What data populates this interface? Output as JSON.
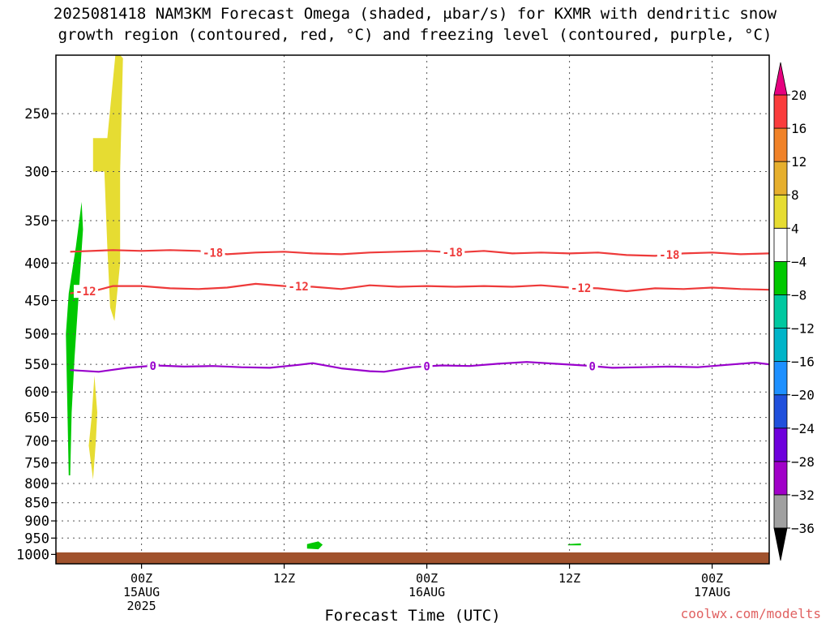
{
  "title_line1": "2025081418 NAM3KM Forecast Omega (shaded, μbar/s) for KXMR with dendritic snow",
  "title_line2": "growth region (contoured, red, °C) and freezing level (contoured, purple, °C)",
  "xlabel": "Forecast Time (UTC)",
  "watermark": "coolwx.com/modelts",
  "chart_data": {
    "type": "heatmap",
    "y_scale": "log-pressure",
    "ylim": [
      1030,
      208
    ],
    "xlim": [
      -6,
      44
    ],
    "grid": true,
    "y_ticks": [
      250,
      300,
      350,
      400,
      450,
      500,
      550,
      600,
      650,
      700,
      750,
      800,
      850,
      900,
      950,
      1000
    ],
    "x_ticks": [
      {
        "x": 0,
        "lines": [
          "00Z",
          "15AUG",
          "2025"
        ]
      },
      {
        "x": 10,
        "lines": [
          "12Z"
        ]
      },
      {
        "x": 20,
        "lines": [
          "00Z",
          "16AUG"
        ]
      },
      {
        "x": 30,
        "lines": [
          "12Z"
        ]
      },
      {
        "x": 40,
        "lines": [
          "00Z",
          "17AUG"
        ]
      }
    ],
    "colorbar": {
      "levels": [
        -36,
        -32,
        -28,
        -24,
        -20,
        -16,
        -12,
        -8,
        -4,
        4,
        8,
        12,
        16,
        20
      ],
      "colors": [
        "#000000",
        "#a0a0a0",
        "#a000c8",
        "#6e00dc",
        "#2050dc",
        "#1e90ff",
        "#00b4c8",
        "#00c8a0",
        "#00c800",
        "#ffffff",
        "#e6dc32",
        "#e6af2d",
        "#f08228",
        "#fa3c3c",
        "#e6007f"
      ]
    },
    "contours": [
      {
        "label": "-18",
        "color": "#ee3a3a",
        "points": [
          [
            -5,
            386
          ],
          [
            -2,
            384
          ],
          [
            0,
            385
          ],
          [
            2,
            384
          ],
          [
            4,
            385
          ],
          [
            6,
            389
          ],
          [
            8,
            387
          ],
          [
            10,
            386
          ],
          [
            12,
            388
          ],
          [
            14,
            389
          ],
          [
            16,
            387
          ],
          [
            18,
            386
          ],
          [
            20,
            385
          ],
          [
            22,
            387
          ],
          [
            24,
            385
          ],
          [
            26,
            388
          ],
          [
            28,
            387
          ],
          [
            30,
            388
          ],
          [
            32,
            387
          ],
          [
            34,
            390
          ],
          [
            36,
            391
          ],
          [
            38,
            388
          ],
          [
            40,
            387
          ],
          [
            42,
            389
          ],
          [
            44,
            388
          ]
        ],
        "label_x": [
          5,
          21.8,
          37
        ]
      },
      {
        "label": "-12",
        "color": "#ee3a3a",
        "points": [
          [
            -5,
            440
          ],
          [
            -3,
            435
          ],
          [
            -2,
            430
          ],
          [
            0,
            430
          ],
          [
            2,
            433
          ],
          [
            4,
            434
          ],
          [
            6,
            432
          ],
          [
            8,
            427
          ],
          [
            10,
            430
          ],
          [
            12,
            431
          ],
          [
            14,
            434
          ],
          [
            16,
            429
          ],
          [
            18,
            431
          ],
          [
            20,
            430
          ],
          [
            22,
            431
          ],
          [
            24,
            430
          ],
          [
            26,
            431
          ],
          [
            28,
            429
          ],
          [
            30,
            432
          ],
          [
            32,
            433
          ],
          [
            34,
            437
          ],
          [
            36,
            433
          ],
          [
            38,
            434
          ],
          [
            40,
            432
          ],
          [
            42,
            434
          ],
          [
            44,
            435
          ]
        ],
        "label_x": [
          -3.9,
          11,
          30.8
        ]
      },
      {
        "label": "0",
        "color": "#9900cc",
        "points": [
          [
            -5,
            560
          ],
          [
            -3,
            563
          ],
          [
            -1,
            556
          ],
          [
            1,
            552
          ],
          [
            3,
            554
          ],
          [
            5,
            553
          ],
          [
            7,
            555
          ],
          [
            9,
            556
          ],
          [
            11,
            551
          ],
          [
            12,
            548
          ],
          [
            14,
            557
          ],
          [
            16,
            562
          ],
          [
            17,
            563
          ],
          [
            19,
            555
          ],
          [
            21,
            552
          ],
          [
            23,
            553
          ],
          [
            25,
            549
          ],
          [
            27,
            546
          ],
          [
            29,
            549
          ],
          [
            31,
            552
          ],
          [
            33,
            556
          ],
          [
            35,
            555
          ],
          [
            37,
            554
          ],
          [
            39,
            555
          ],
          [
            41,
            551
          ],
          [
            43,
            547
          ],
          [
            44,
            550
          ]
        ],
        "label_x": [
          0.8,
          20,
          31.6
        ]
      }
    ],
    "omega_regions": [
      {
        "value_range": [
          -8,
          -4
        ],
        "color": "#00c800",
        "points": [
          [
            -5.1,
            780
          ],
          [
            -5.3,
            500
          ],
          [
            -5.1,
            440
          ],
          [
            -4.6,
            380
          ],
          [
            -4.2,
            330
          ],
          [
            -4.1,
            360
          ],
          [
            -4.4,
            440
          ],
          [
            -4.7,
            540
          ],
          [
            -4.9,
            640
          ],
          [
            -5.0,
            780
          ]
        ]
      },
      {
        "value_range": [
          4,
          8
        ],
        "color": "#e6dc32",
        "points": [
          [
            -3.4,
            270
          ],
          [
            -2.4,
            270
          ],
          [
            -1.8,
            205
          ],
          [
            -1.3,
            210
          ],
          [
            -1.5,
            300
          ],
          [
            -1.5,
            400
          ],
          [
            -1.9,
            480
          ],
          [
            -2.2,
            460
          ],
          [
            -2.4,
            380
          ],
          [
            -2.6,
            300
          ],
          [
            -3.4,
            300
          ]
        ]
      },
      {
        "value_range": [
          4,
          8
        ],
        "color": "#e6dc32",
        "points": [
          [
            -3.5,
            650
          ],
          [
            -3.3,
            570
          ],
          [
            -3.1,
            640
          ],
          [
            -3.2,
            700
          ],
          [
            -3.4,
            790
          ],
          [
            -3.7,
            710
          ]
        ]
      },
      {
        "value_range": [
          -8,
          -4
        ],
        "color": "#00c800",
        "points": [
          [
            11.6,
            968
          ],
          [
            12.4,
            960
          ],
          [
            12.7,
            970
          ],
          [
            12.4,
            984
          ],
          [
            11.6,
            982
          ]
        ]
      },
      {
        "value_range": [
          -8,
          -4
        ],
        "color": "#00c800",
        "points": [
          [
            29.9,
            968
          ],
          [
            30.8,
            966
          ],
          [
            30.8,
            972
          ],
          [
            29.9,
            972
          ]
        ]
      }
    ],
    "terrain": {
      "color": "#a0522d"
    }
  }
}
